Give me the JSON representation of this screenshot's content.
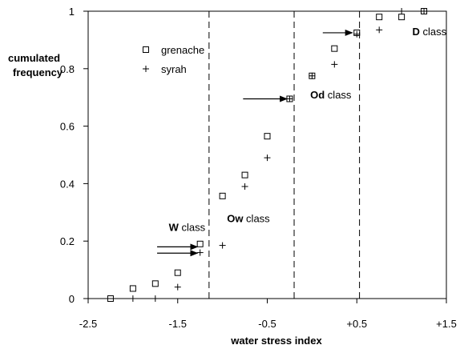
{
  "chart_data": {
    "type": "scatter",
    "xlabel": "water stress index",
    "ylabel_line1": "cumulated",
    "ylabel_line2": "frequency",
    "xlim": [
      -2.5,
      1.5
    ],
    "ylim": [
      0,
      1
    ],
    "xticks": [
      {
        "value": -2.5,
        "label": "-2.5"
      },
      {
        "value": -1.5,
        "label": "-1.5"
      },
      {
        "value": -0.5,
        "label": "-0.5"
      },
      {
        "value": 0.5,
        "label": "+0.5"
      },
      {
        "value": 1.5,
        "label": "+1.5"
      }
    ],
    "yticks": [
      {
        "value": 0,
        "label": "0"
      },
      {
        "value": 0.2,
        "label": "0.2"
      },
      {
        "value": 0.4,
        "label": "0.4"
      },
      {
        "value": 0.6,
        "label": "0.6"
      },
      {
        "value": 0.8,
        "label": "0.8"
      },
      {
        "value": 1,
        "label": "1"
      }
    ],
    "series": [
      {
        "name": "grenache",
        "marker": "square",
        "points": [
          [
            -2.25,
            0.0
          ],
          [
            -2.0,
            0.035
          ],
          [
            -1.75,
            0.052
          ],
          [
            -1.5,
            0.09
          ],
          [
            -1.25,
            0.19
          ],
          [
            -1.0,
            0.357
          ],
          [
            -0.75,
            0.43
          ],
          [
            -0.5,
            0.565
          ],
          [
            -0.25,
            0.695
          ],
          [
            0.0,
            0.775
          ],
          [
            0.25,
            0.87
          ],
          [
            0.5,
            0.925
          ],
          [
            0.75,
            0.98
          ],
          [
            1.0,
            0.98
          ],
          [
            1.25,
            1.0
          ]
        ]
      },
      {
        "name": "syrah",
        "marker": "plus",
        "points": [
          [
            -2.0,
            0.0
          ],
          [
            -1.75,
            0.0
          ],
          [
            -1.5,
            0.04
          ],
          [
            -1.25,
            0.16
          ],
          [
            -1.0,
            0.185
          ],
          [
            -0.75,
            0.39
          ],
          [
            -0.5,
            0.49
          ],
          [
            -0.25,
            0.695
          ],
          [
            0.0,
            0.775
          ],
          [
            0.25,
            0.815
          ],
          [
            0.5,
            0.92
          ],
          [
            0.75,
            0.935
          ],
          [
            1.0,
            1.0
          ],
          [
            1.25,
            1.0
          ]
        ]
      }
    ],
    "class_boundaries": [
      -1.15,
      -0.2,
      0.53
    ],
    "class_labels": [
      {
        "bold": "W",
        "rest": " class",
        "x": -1.6,
        "y": 0.25
      },
      {
        "bold": "Ow",
        "rest": " class",
        "x": -0.95,
        "y": 0.28
      },
      {
        "bold": "Od",
        "rest": " class",
        "x": -0.02,
        "y": 0.71
      },
      {
        "bold": "D",
        "rest": " class",
        "x": 1.12,
        "y": 0.93
      }
    ],
    "arrows": [
      {
        "from": [
          -1.73,
          0.18
        ],
        "to": [
          -1.28,
          0.18
        ]
      },
      {
        "from": [
          -1.73,
          0.158
        ],
        "to": [
          -1.28,
          0.158
        ]
      },
      {
        "from": [
          -0.77,
          0.695
        ],
        "to": [
          -0.28,
          0.695
        ]
      },
      {
        "from": [
          0.12,
          0.925
        ],
        "to": [
          0.45,
          0.925
        ]
      }
    ],
    "legend": {
      "placement": "upper-left",
      "items": [
        "grenache",
        "syrah"
      ]
    }
  }
}
